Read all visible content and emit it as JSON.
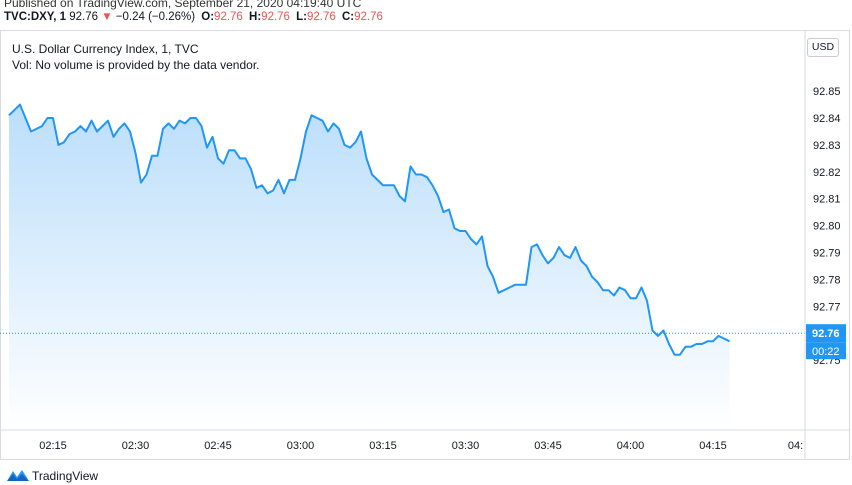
{
  "header": {
    "published": "Published on TradingView.com, September 21, 2020 04:19:40 UTC",
    "symbol": "TVC:DXY, 1",
    "price": "92.76",
    "change": "−0.24 (−0.26%)",
    "o_label": "O:",
    "o_value": "92.76",
    "h_label": "H:",
    "h_value": "92.76",
    "l_label": "L:",
    "l_value": "92.76",
    "c_label": "C:",
    "c_value": "92.76"
  },
  "legend": {
    "title": "U.S. Dollar Currency Index, 1, TVC",
    "volume_note": "Vol: No volume is provided by the data vendor."
  },
  "currency_button": "USD",
  "price_label": "92.76",
  "countdown_label": "00:22",
  "footer": {
    "brand": "TradingView"
  },
  "colors": {
    "line": "#2196f3",
    "area_top": "#bbdefb",
    "area_bottom": "#ffffff",
    "down": "#ef5350",
    "axis_text": "#131722"
  },
  "chart_data": {
    "type": "area",
    "title": "U.S. Dollar Currency Index, 1, TVC",
    "xlabel": "",
    "ylabel": "",
    "x_ticks": [
      "02:15",
      "02:30",
      "02:45",
      "03:00",
      "03:15",
      "03:30",
      "03:45",
      "04:00",
      "04:15",
      "04:"
    ],
    "y_ticks": [
      "92.85",
      "92.84",
      "92.83",
      "92.82",
      "92.81",
      "92.80",
      "92.79",
      "92.78",
      "92.77",
      "92.76",
      "92.75"
    ],
    "ylim": [
      92.746,
      92.857
    ],
    "grid": false,
    "last_value": 92.76,
    "series": [
      {
        "values": [
          [
            "02:07",
            92.841
          ],
          [
            "02:09",
            92.845
          ],
          [
            "02:11",
            92.835
          ],
          [
            "02:13",
            92.837
          ],
          [
            "02:14",
            92.84
          ],
          [
            "02:15",
            92.84
          ],
          [
            "02:16",
            92.83
          ],
          [
            "02:17",
            92.831
          ],
          [
            "02:18",
            92.834
          ],
          [
            "02:19",
            92.835
          ],
          [
            "02:20",
            92.837
          ],
          [
            "02:21",
            92.835
          ],
          [
            "02:22",
            92.839
          ],
          [
            "02:23",
            92.835
          ],
          [
            "02:24",
            92.837
          ],
          [
            "02:25",
            92.839
          ],
          [
            "02:26",
            92.833
          ],
          [
            "02:27",
            92.836
          ],
          [
            "02:28",
            92.838
          ],
          [
            "02:29",
            92.835
          ],
          [
            "02:30",
            92.827
          ],
          [
            "02:31",
            92.816
          ],
          [
            "02:32",
            92.819
          ],
          [
            "02:33",
            92.826
          ],
          [
            "02:34",
            92.826
          ],
          [
            "02:35",
            92.836
          ],
          [
            "02:36",
            92.838
          ],
          [
            "02:37",
            92.836
          ],
          [
            "02:38",
            92.839
          ],
          [
            "02:39",
            92.838
          ],
          [
            "02:40",
            92.84
          ],
          [
            "02:41",
            92.84
          ],
          [
            "02:42",
            92.837
          ],
          [
            "02:43",
            92.829
          ],
          [
            "02:44",
            92.833
          ],
          [
            "02:45",
            92.825
          ],
          [
            "02:46",
            92.823
          ],
          [
            "02:47",
            92.828
          ],
          [
            "02:48",
            92.828
          ],
          [
            "02:49",
            92.825
          ],
          [
            "02:50",
            92.825
          ],
          [
            "02:51",
            92.821
          ],
          [
            "02:52",
            92.814
          ],
          [
            "02:53",
            92.815
          ],
          [
            "02:54",
            92.812
          ],
          [
            "02:55",
            92.813
          ],
          [
            "02:56",
            92.817
          ],
          [
            "02:57",
            92.812
          ],
          [
            "02:58",
            92.817
          ],
          [
            "02:59",
            92.817
          ],
          [
            "03:00",
            92.825
          ],
          [
            "03:01",
            92.835
          ],
          [
            "03:02",
            92.841
          ],
          [
            "03:03",
            92.84
          ],
          [
            "03:04",
            92.839
          ],
          [
            "03:05",
            92.835
          ],
          [
            "03:06",
            92.838
          ],
          [
            "03:07",
            92.836
          ],
          [
            "03:08",
            92.83
          ],
          [
            "03:09",
            92.829
          ],
          [
            "03:10",
            92.831
          ],
          [
            "03:11",
            92.835
          ],
          [
            "03:12",
            92.825
          ],
          [
            "03:13",
            92.819
          ],
          [
            "03:14",
            92.817
          ],
          [
            "03:15",
            92.815
          ],
          [
            "03:16",
            92.815
          ],
          [
            "03:17",
            92.815
          ],
          [
            "03:18",
            92.811
          ],
          [
            "03:19",
            92.809
          ],
          [
            "03:20",
            92.822
          ],
          [
            "03:21",
            92.819
          ],
          [
            "03:22",
            92.819
          ],
          [
            "03:23",
            92.818
          ],
          [
            "03:24",
            92.815
          ],
          [
            "03:25",
            92.811
          ],
          [
            "03:26",
            92.805
          ],
          [
            "03:27",
            92.806
          ],
          [
            "03:28",
            92.799
          ],
          [
            "03:29",
            92.798
          ],
          [
            "03:30",
            92.798
          ],
          [
            "03:31",
            92.795
          ],
          [
            "03:32",
            92.793
          ],
          [
            "03:33",
            92.796
          ],
          [
            "03:34",
            92.785
          ],
          [
            "03:35",
            92.781
          ],
          [
            "03:36",
            92.775
          ],
          [
            "03:37",
            92.776
          ],
          [
            "03:38",
            92.777
          ],
          [
            "03:39",
            92.778
          ],
          [
            "03:40",
            92.778
          ],
          [
            "03:41",
            92.778
          ],
          [
            "03:42",
            92.792
          ],
          [
            "03:43",
            92.793
          ],
          [
            "03:44",
            92.789
          ],
          [
            "03:45",
            92.786
          ],
          [
            "03:46",
            92.788
          ],
          [
            "03:47",
            92.792
          ],
          [
            "03:48",
            92.789
          ],
          [
            "03:49",
            92.788
          ],
          [
            "03:50",
            92.792
          ],
          [
            "03:51",
            92.787
          ],
          [
            "03:52",
            92.785
          ],
          [
            "03:53",
            92.781
          ],
          [
            "03:54",
            92.779
          ],
          [
            "03:55",
            92.776
          ],
          [
            "03:56",
            92.776
          ],
          [
            "03:57",
            92.774
          ],
          [
            "03:58",
            92.777
          ],
          [
            "03:59",
            92.776
          ],
          [
            "04:00",
            92.773
          ],
          [
            "04:01",
            92.773
          ],
          [
            "04:02",
            92.777
          ],
          [
            "04:03",
            92.772
          ],
          [
            "04:04",
            92.761
          ],
          [
            "04:05",
            92.759
          ],
          [
            "04:06",
            92.761
          ],
          [
            "04:07",
            92.756
          ],
          [
            "04:08",
            92.752
          ],
          [
            "04:09",
            92.752
          ],
          [
            "04:10",
            92.755
          ],
          [
            "04:11",
            92.755
          ],
          [
            "04:12",
            92.756
          ],
          [
            "04:13",
            92.756
          ],
          [
            "04:14",
            92.757
          ],
          [
            "04:15",
            92.757
          ],
          [
            "04:16",
            92.759
          ],
          [
            "04:17",
            92.758
          ],
          [
            "04:18",
            92.757
          ]
        ]
      }
    ]
  }
}
